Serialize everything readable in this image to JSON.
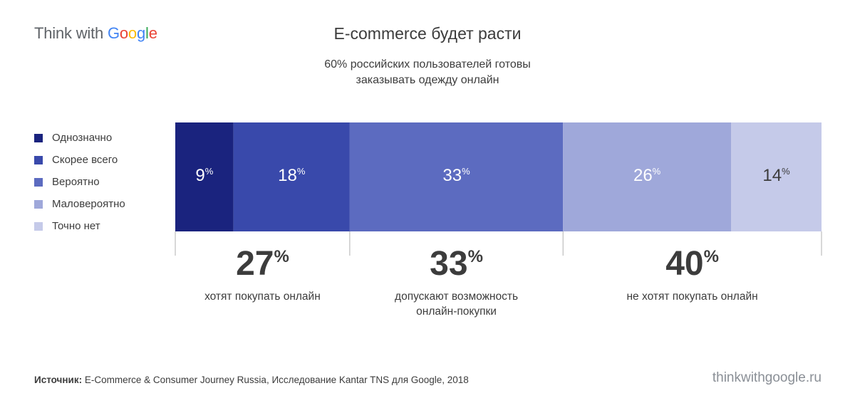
{
  "logo": {
    "think": "Think with ",
    "google": [
      "G",
      "o",
      "o",
      "g",
      "l",
      "e"
    ]
  },
  "title": "E-commerce будет расти",
  "subtitle_line1": "60% российских пользователей готовы",
  "subtitle_line2": "заказывать одежду онлайн",
  "legend": [
    {
      "label": "Однозначно",
      "color": "#1a237e"
    },
    {
      "label": "Скорее всего",
      "color": "#3949ab"
    },
    {
      "label": "Вероятно",
      "color": "#5c6bc0"
    },
    {
      "label": "Маловероятно",
      "color": "#9fa8da"
    },
    {
      "label": "Точно нет",
      "color": "#c5cae9"
    }
  ],
  "chart_data": {
    "type": "bar",
    "orientation": "horizontal-stacked",
    "unit": "%",
    "segments": [
      {
        "name": "Однозначно",
        "value": 9,
        "color": "#1a237e"
      },
      {
        "name": "Скорее всего",
        "value": 18,
        "color": "#3949ab"
      },
      {
        "name": "Вероятно",
        "value": 33,
        "color": "#5c6bc0"
      },
      {
        "name": "Маловероятно",
        "value": 26,
        "color": "#9fa8da"
      },
      {
        "name": "Точно нет",
        "value": 14,
        "color": "#c5cae9"
      }
    ],
    "groups": [
      {
        "value": 27,
        "label_lines": [
          "хотят покупать онлайн"
        ],
        "from": 0,
        "to": 27
      },
      {
        "value": 33,
        "label_lines": [
          "допускают возможность",
          "онлайн-покупки"
        ],
        "from": 27,
        "to": 60
      },
      {
        "value": 40,
        "label_lines": [
          "не хотят покупать онлайн"
        ],
        "from": 60,
        "to": 100
      }
    ]
  },
  "source_label": "Источник:",
  "source_text": " E-Commerce & Consumer Journey Russia, Исследование Kantar TNS для Google, 2018",
  "site": "thinkwithgoogle.ru"
}
